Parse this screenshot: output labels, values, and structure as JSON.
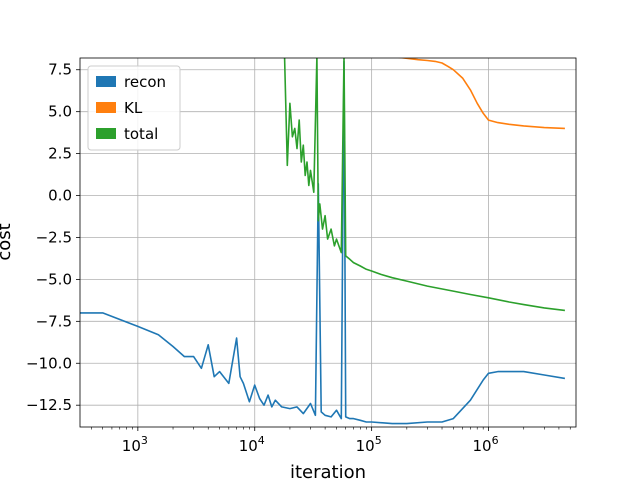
{
  "chart_data": {
    "type": "line",
    "title": "",
    "xlabel": "iteration",
    "ylabel": "cost",
    "xscale": "log",
    "xlim": [
      320,
      5600000
    ],
    "ylim": [
      -13.8,
      8.2
    ],
    "grid": true,
    "legend_position": "top-left",
    "x_ticks": [
      {
        "value": 1000,
        "label": "10",
        "exp": "3"
      },
      {
        "value": 10000,
        "label": "10",
        "exp": "4"
      },
      {
        "value": 100000,
        "label": "10",
        "exp": "5"
      },
      {
        "value": 1000000,
        "label": "10",
        "exp": "6"
      }
    ],
    "y_ticks": [
      {
        "value": 7.5,
        "label": "7.5"
      },
      {
        "value": 5.0,
        "label": "5.0"
      },
      {
        "value": 2.5,
        "label": "2.5"
      },
      {
        "value": 0.0,
        "label": "0.0"
      },
      {
        "value": -2.5,
        "label": "−2.5"
      },
      {
        "value": -5.0,
        "label": "−5.0"
      },
      {
        "value": -7.5,
        "label": "−7.5"
      },
      {
        "value": -10.0,
        "label": "−10.0"
      },
      {
        "value": -12.5,
        "label": "−12.5"
      }
    ],
    "series": [
      {
        "name": "recon",
        "color": "#1f77b4",
        "x": [
          300,
          500,
          1000,
          1500,
          2000,
          2500,
          3000,
          3500,
          4000,
          4500,
          5000,
          6000,
          7000,
          7500,
          8000,
          9000,
          10000,
          11000,
          12000,
          13000,
          14000,
          15000,
          17000,
          20000,
          23000,
          26000,
          30000,
          33000,
          35000,
          37000,
          40000,
          45000,
          50000,
          55000,
          58000,
          60000,
          65000,
          70000,
          80000,
          90000,
          100000,
          150000,
          200000,
          300000,
          400000,
          500000,
          700000,
          900000,
          1000000,
          1200000,
          1500000,
          2000000,
          3000000,
          4500000
        ],
        "y": [
          -7.0,
          -7.0,
          -7.8,
          -8.3,
          -9.0,
          -9.6,
          -9.6,
          -10.3,
          -8.9,
          -10.8,
          -10.5,
          -11.2,
          -8.5,
          -10.8,
          -11.2,
          -12.3,
          -11.3,
          -12.1,
          -12.5,
          -11.9,
          -12.6,
          -12.2,
          -12.6,
          -12.7,
          -12.6,
          -13.0,
          -12.4,
          -13.1,
          0.7,
          -12.9,
          -13.1,
          -13.2,
          -12.8,
          -13.3,
          8.0,
          -13.2,
          -13.3,
          -13.3,
          -13.4,
          -13.5,
          -13.5,
          -13.6,
          -13.6,
          -13.5,
          -13.5,
          -13.3,
          -12.2,
          -11.0,
          -10.6,
          -10.5,
          -10.5,
          -10.5,
          -10.7,
          -10.9
        ]
      },
      {
        "name": "KL",
        "color": "#ff7f0e",
        "x": [
          145000,
          250000,
          300000,
          350000,
          400000,
          450000,
          500000,
          600000,
          700000,
          800000,
          900000,
          1000000,
          1200000,
          1500000,
          2000000,
          3000000,
          4500000
        ],
        "y": [
          8.3,
          8.1,
          8.05,
          8.0,
          7.9,
          7.7,
          7.5,
          7.0,
          6.3,
          5.5,
          4.9,
          4.5,
          4.35,
          4.25,
          4.15,
          4.05,
          4.0
        ]
      },
      {
        "name": "total",
        "color": "#2ca02c",
        "x": [
          18000,
          19000,
          20000,
          21000,
          22000,
          23000,
          24000,
          25000,
          26000,
          27000,
          28000,
          29000,
          30000,
          32000,
          34000,
          35000,
          36000,
          38000,
          40000,
          42000,
          45000,
          48000,
          50000,
          55000,
          58000,
          60000,
          65000,
          70000,
          80000,
          90000,
          100000,
          120000,
          150000,
          200000,
          300000,
          500000,
          700000,
          1000000,
          1500000,
          2000000,
          3000000,
          4500000
        ],
        "y": [
          8.2,
          1.8,
          5.5,
          3.5,
          4.0,
          2.8,
          4.5,
          2.0,
          3.0,
          1.2,
          2.0,
          0.6,
          1.5,
          0.2,
          8.3,
          -1.5,
          -0.5,
          -2.0,
          -1.2,
          -2.6,
          -2.0,
          -3.0,
          -2.6,
          -3.4,
          8.3,
          -3.6,
          -3.8,
          -4.0,
          -4.2,
          -4.4,
          -4.5,
          -4.7,
          -4.9,
          -5.1,
          -5.4,
          -5.7,
          -5.9,
          -6.1,
          -6.35,
          -6.5,
          -6.7,
          -6.85
        ]
      }
    ]
  }
}
